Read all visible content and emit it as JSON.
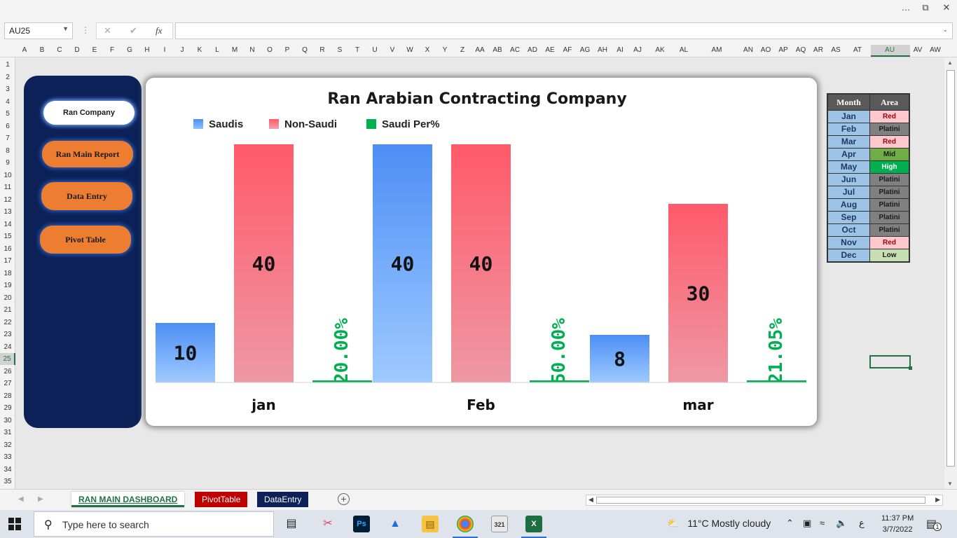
{
  "window": {
    "minimize": "…",
    "restore": "⧉",
    "close": "✕"
  },
  "formula_bar": {
    "name_box": "AU25",
    "fx": "fx",
    "cancel": "✕",
    "enter": "✔",
    "formula": ""
  },
  "columns": [
    "A",
    "B",
    "C",
    "D",
    "E",
    "F",
    "G",
    "H",
    "I",
    "J",
    "K",
    "L",
    "M",
    "N",
    "O",
    "P",
    "Q",
    "R",
    "S",
    "T",
    "U",
    "V",
    "W",
    "X",
    "Y",
    "Z",
    "AA",
    "AB",
    "AC",
    "AD",
    "AE",
    "AF",
    "AG",
    "AH",
    "AI",
    "AJ",
    "AK",
    "AL",
    "AM",
    "AN",
    "AO",
    "AP",
    "AQ",
    "AR",
    "AS",
    "AT",
    "AU",
    "AV",
    "AW"
  ],
  "active_column": "AU",
  "rows": [
    "1",
    "2",
    "3",
    "4",
    "5",
    "6",
    "7",
    "8",
    "9",
    "10",
    "11",
    "12",
    "13",
    "14",
    "15",
    "16",
    "17",
    "18",
    "19",
    "20",
    "21",
    "22",
    "23",
    "24",
    "25",
    "26",
    "27",
    "28",
    "29",
    "30",
    "31",
    "32",
    "33",
    "34",
    "35"
  ],
  "active_row": "25",
  "nav": {
    "ran_company": "Ran Company",
    "main_report": "Ran Main Report",
    "data_entry": "Data Entry",
    "pivot_table": "Pivot Table"
  },
  "chart_data": {
    "type": "bar",
    "title": "Ran Arabian Contracting Company",
    "categories": [
      "jan",
      "Feb",
      "mar"
    ],
    "series": [
      {
        "name": "Saudis",
        "values": [
          10,
          40,
          8
        ],
        "labels": [
          "10",
          "40",
          "8"
        ],
        "color": "#4d8ef5"
      },
      {
        "name": "Non-Saudi",
        "values": [
          40,
          40,
          30
        ],
        "labels": [
          "40",
          "40",
          "30"
        ],
        "color": "#ff5a6a"
      },
      {
        "name": "Saudi Per%",
        "values": [
          0.2,
          0.5,
          0.2105
        ],
        "labels": [
          "20.00%",
          "50.00%",
          "21.05%"
        ],
        "color": "#00b050"
      }
    ],
    "ylim": [
      0,
      40
    ],
    "grid": false,
    "legend": "top-left"
  },
  "month_table": {
    "headers": [
      "Month",
      "Area"
    ],
    "rows": [
      {
        "month": "Jan",
        "area": "Red",
        "bg": "#ffc7ce",
        "fg": "#9c0006"
      },
      {
        "month": "Feb",
        "area": "Platini",
        "bg": "#808080",
        "fg": "#1a1a1a"
      },
      {
        "month": "Mar",
        "area": "Red",
        "bg": "#ffc7ce",
        "fg": "#9c0006"
      },
      {
        "month": "Apr",
        "area": "Mid",
        "bg": "#70ad47",
        "fg": "#1a1a1a"
      },
      {
        "month": "May",
        "area": "High",
        "bg": "#00b050",
        "fg": "#ffffff"
      },
      {
        "month": "Jun",
        "area": "Platini",
        "bg": "#808080",
        "fg": "#1a1a1a"
      },
      {
        "month": "Jul",
        "area": "Platini",
        "bg": "#808080",
        "fg": "#1a1a1a"
      },
      {
        "month": "Aug",
        "area": "Platini",
        "bg": "#808080",
        "fg": "#1a1a1a"
      },
      {
        "month": "Sep",
        "area": "Platini",
        "bg": "#808080",
        "fg": "#1a1a1a"
      },
      {
        "month": "Oct",
        "area": "Platini",
        "bg": "#808080",
        "fg": "#1a1a1a"
      },
      {
        "month": "Nov",
        "area": "Red",
        "bg": "#ffc7ce",
        "fg": "#9c0006"
      },
      {
        "month": "Dec",
        "area": "Low",
        "bg": "#c6e0b4",
        "fg": "#1a1a1a"
      }
    ]
  },
  "sheet_tabs": [
    "RAN MAIN DASHBOARD",
    "PivotTable",
    "DataEntry"
  ],
  "taskbar": {
    "search_placeholder": "Type here to search",
    "weather": "11°C  Mostly cloudy",
    "lang": "ع",
    "time": "11:37 PM",
    "date": "3/7/2022",
    "notification_count": "1"
  }
}
